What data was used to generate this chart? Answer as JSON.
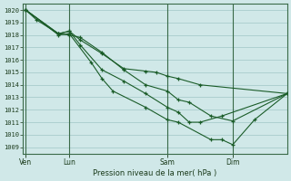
{
  "background_color": "#d0e8e8",
  "grid_color": "#a8cccc",
  "line_color": "#1a5c28",
  "ylabel": "Pression niveau de la mer( hPa )",
  "ylim": [
    1008.5,
    1020.5
  ],
  "yticks": [
    1009,
    1010,
    1011,
    1012,
    1013,
    1014,
    1015,
    1016,
    1017,
    1018,
    1019,
    1020
  ],
  "xtick_labels": [
    "Ven",
    "Lun",
    "Sam",
    "Dim"
  ],
  "xtick_positions": [
    0,
    16,
    52,
    76
  ],
  "xlim": [
    -1,
    96
  ],
  "vlines": [
    0,
    16,
    52,
    76
  ],
  "series_x": [
    [
      0,
      4,
      12,
      16,
      20,
      28,
      36,
      44,
      48,
      52,
      56,
      64,
      96
    ],
    [
      0,
      12,
      16,
      20,
      28,
      36,
      44,
      52,
      56,
      60,
      68,
      76,
      96
    ],
    [
      0,
      12,
      16,
      20,
      28,
      36,
      44,
      52,
      56,
      60,
      64,
      72,
      96
    ],
    [
      0,
      12,
      16,
      24,
      28,
      32,
      44,
      52,
      56,
      68,
      72,
      76,
      84,
      96
    ]
  ],
  "series_y": [
    [
      1020.0,
      1019.2,
      1018.1,
      1018.3,
      1017.6,
      1016.5,
      1015.3,
      1015.1,
      1015.0,
      1014.7,
      1014.5,
      1014.0,
      1013.3
    ],
    [
      1020.0,
      1018.1,
      1018.0,
      1017.8,
      1016.6,
      1015.2,
      1014.0,
      1013.5,
      1012.8,
      1012.6,
      1011.5,
      1011.1,
      1013.3
    ],
    [
      1020.0,
      1018.1,
      1018.3,
      1017.2,
      1015.2,
      1014.3,
      1013.3,
      1012.2,
      1011.8,
      1011.0,
      1011.0,
      1011.5,
      1013.3
    ],
    [
      1020.0,
      1018.0,
      1018.1,
      1015.8,
      1014.5,
      1013.5,
      1012.2,
      1011.2,
      1011.0,
      1009.6,
      1009.6,
      1009.2,
      1011.2,
      1013.3
    ]
  ]
}
